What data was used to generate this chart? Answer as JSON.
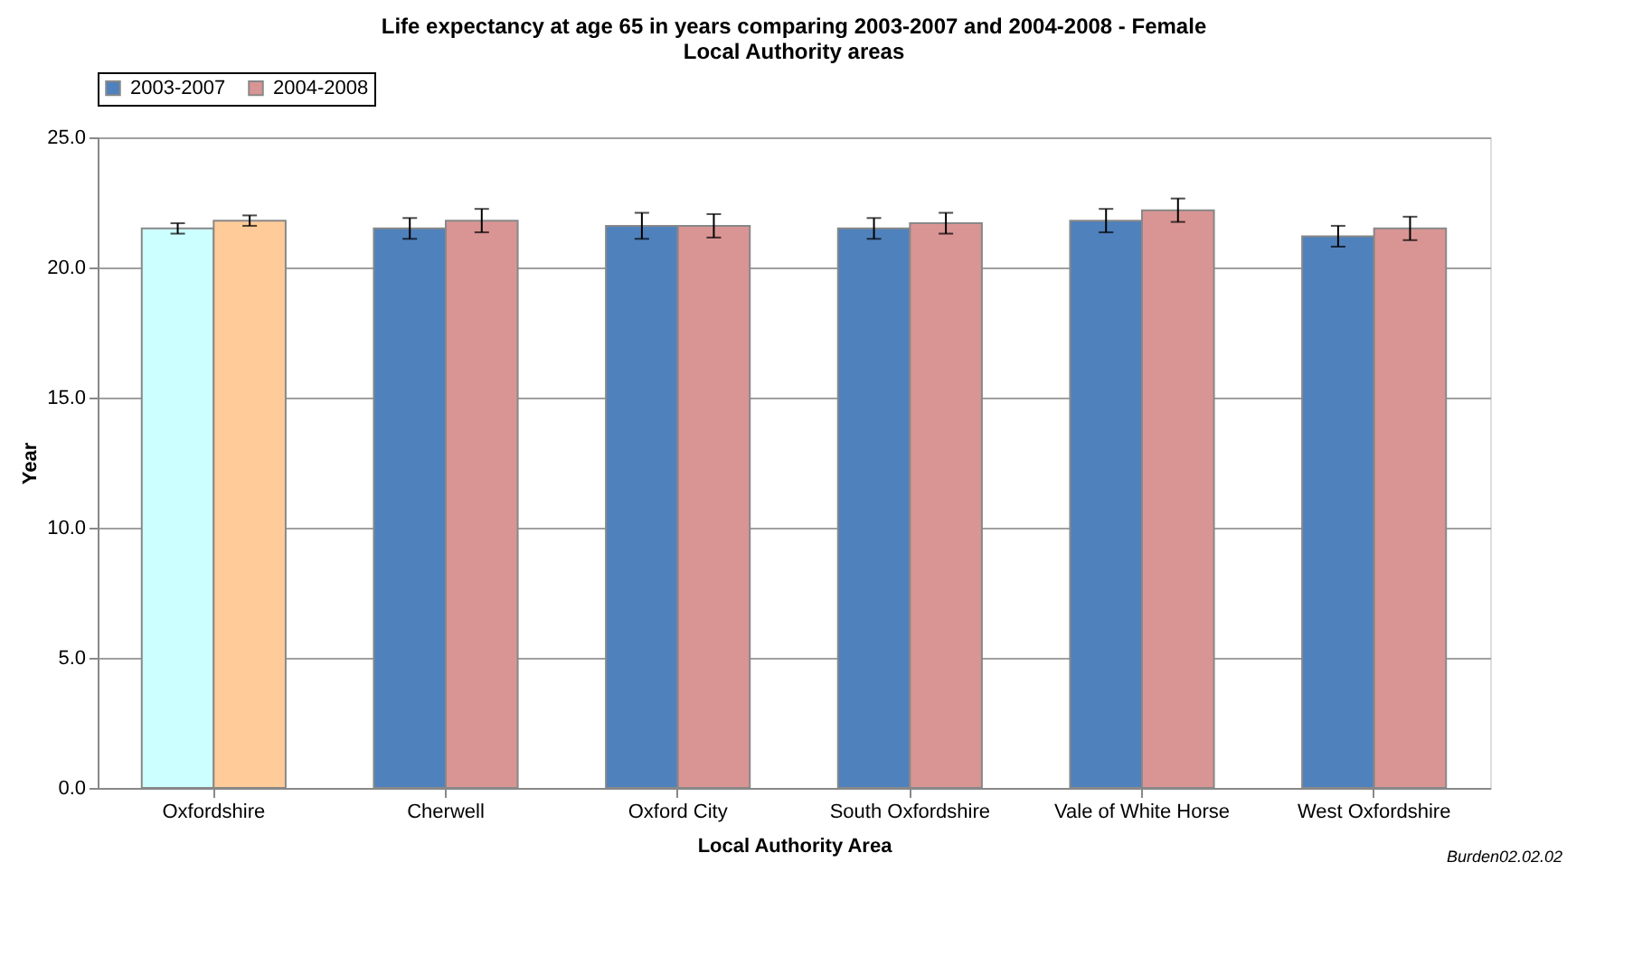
{
  "chart_data": {
    "type": "bar",
    "title": [
      "Life expectancy at age 65 in years comparing 2003-2007 and 2004-2008 - Female",
      "Local Authority areas"
    ],
    "xlabel": "Local Authority Area",
    "ylabel": "Year",
    "categories": [
      "Oxfordshire",
      "Cherwell",
      "Oxford City",
      "South Oxfordshire",
      "Vale of White Horse",
      "West Oxfordshire"
    ],
    "series": [
      {
        "name": "2003-2007",
        "color": "#4f81bd",
        "colors": [
          "#ccffff",
          "#4f81bd",
          "#4f81bd",
          "#4f81bd",
          "#4f81bd",
          "#4f81bd"
        ],
        "values": [
          21.5,
          21.5,
          21.6,
          21.5,
          21.8,
          21.2
        ],
        "errors": [
          0.2,
          0.4,
          0.5,
          0.4,
          0.45,
          0.4
        ]
      },
      {
        "name": "2004-2008",
        "color": "#d99594",
        "colors": [
          "#ffcc99",
          "#d99594",
          "#d99594",
          "#d99594",
          "#d99594",
          "#d99594"
        ],
        "values": [
          21.8,
          21.8,
          21.6,
          21.7,
          22.2,
          21.5
        ],
        "errors": [
          0.2,
          0.45,
          0.45,
          0.4,
          0.45,
          0.45
        ]
      }
    ],
    "ylim": [
      0,
      25
    ],
    "yticks": [
      {
        "value": 0,
        "label": "0.0"
      },
      {
        "value": 5,
        "label": "5.0"
      },
      {
        "value": 10,
        "label": "10.0"
      },
      {
        "value": 15,
        "label": "15.0"
      },
      {
        "value": 20,
        "label": "20.0"
      },
      {
        "value": 25,
        "label": "25.0"
      }
    ],
    "grid": "y",
    "legend": "top",
    "annotations": [
      "Burden02.02.02"
    ]
  }
}
